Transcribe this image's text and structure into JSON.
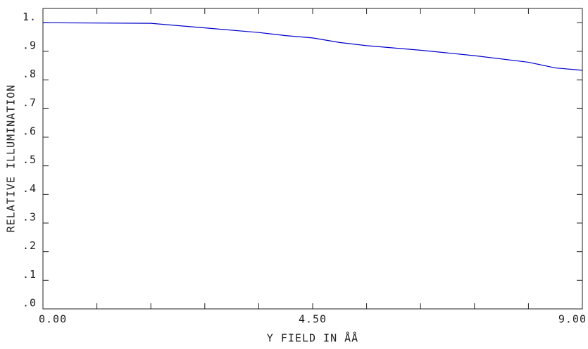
{
  "chart_data": {
    "type": "line",
    "x_label": "Y FIELD IN  ÅÅ",
    "y_label": "RELATIVE ILLUMINATION",
    "x": [
      0,
      1.8,
      2.7,
      3.6,
      4.05,
      4.5,
      4.95,
      5.4,
      6.3,
      7.2,
      8.1,
      8.55,
      9.0
    ],
    "series": [
      {
        "color": "#0000cc",
        "values": [
          1.0,
          0.998,
          0.982,
          0.966,
          0.955,
          0.947,
          0.931,
          0.92,
          0.904,
          0.885,
          0.862,
          0.842,
          0.834
        ]
      }
    ],
    "xlim": [
      0,
      9.0
    ],
    "ylim": [
      0,
      1.05
    ],
    "xticks": [
      {
        "value": 0,
        "label": "0.00"
      },
      {
        "value": 4.5,
        "label": "4.50"
      },
      {
        "value": 9,
        "label": "9.00"
      }
    ],
    "xminor_ticks": [
      0.9,
      1.8,
      2.7,
      3.6,
      5.4,
      6.3,
      7.2,
      8.1
    ],
    "yticks": [
      {
        "value": 0,
        "label": ".0"
      },
      {
        "value": 0.1,
        "label": ".1"
      },
      {
        "value": 0.2,
        "label": ".2"
      },
      {
        "value": 0.3,
        "label": ".3"
      },
      {
        "value": 0.4,
        "label": ".4"
      },
      {
        "value": 0.5,
        "label": ".5"
      },
      {
        "value": 0.6,
        "label": ".6"
      },
      {
        "value": 0.7,
        "label": ".7"
      },
      {
        "value": 0.8,
        "label": ".8"
      },
      {
        "value": 0.9,
        "label": ".9"
      },
      {
        "value": 1.0,
        "label": "1."
      }
    ],
    "grid": false
  }
}
